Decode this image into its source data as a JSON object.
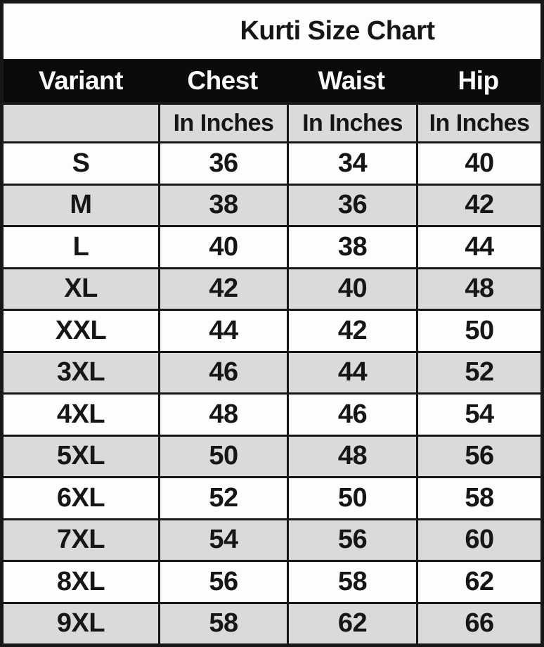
{
  "title": "Kurti Size Chart",
  "colors": {
    "header_bg": "#0b0b0b",
    "header_text": "#fafafa",
    "row_bg": "#fdfdfd",
    "row_alt_bg": "#dadada",
    "border": "#171717",
    "text": "#161616"
  },
  "chart_data": {
    "type": "table",
    "title": "Kurti Size Chart",
    "columns": [
      "Variant",
      "Chest",
      "Waist",
      "Hip"
    ],
    "units_row": [
      "",
      "In Inches",
      "In Inches",
      "In Inches"
    ],
    "unit": "inches",
    "rows": [
      [
        "S",
        36,
        34,
        40
      ],
      [
        "M",
        38,
        36,
        42
      ],
      [
        "L",
        40,
        38,
        44
      ],
      [
        "XL",
        42,
        40,
        48
      ],
      [
        "XXL",
        44,
        42,
        50
      ],
      [
        "3XL",
        46,
        44,
        52
      ],
      [
        "4XL",
        48,
        46,
        54
      ],
      [
        "5XL",
        50,
        48,
        56
      ],
      [
        "6XL",
        52,
        50,
        58
      ],
      [
        "7XL",
        54,
        56,
        60
      ],
      [
        "8XL",
        56,
        58,
        62
      ],
      [
        "9XL",
        58,
        62,
        66
      ]
    ],
    "layout": {
      "row_striping": "alternating white/gray starting white at S",
      "header_style": "solid black band, white text, no column dividers",
      "grid": "black cell borders on unit row and data rows"
    }
  }
}
